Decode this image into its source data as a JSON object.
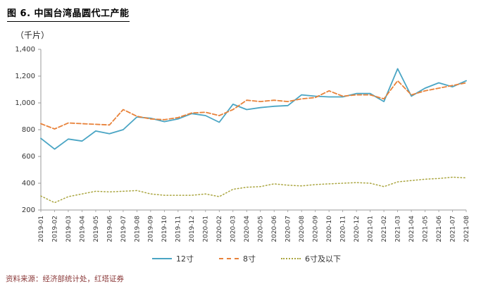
{
  "header": {
    "figure_title": "图 6. 中国台湾晶圆代工产能"
  },
  "unit_label": "（千片）",
  "footer": {
    "source": "资料来源：经济部统计处，红塔证券"
  },
  "colors": {
    "series_12": "#4aa5c4",
    "series_8": "#e8823a",
    "series_6": "#aaa53f",
    "axis": "#999999",
    "tick_text": "#333333"
  },
  "chart_data": {
    "type": "line",
    "title": "图 6. 中国台湾晶圆代工产能",
    "ylabel": "（千片）",
    "ylim": [
      200,
      1400
    ],
    "grid": false,
    "legend_position": "bottom",
    "y_ticks": {
      "values": [
        200,
        400,
        600,
        800,
        1000,
        1200,
        1400
      ],
      "labels": [
        "200",
        "400",
        "600",
        "800",
        "1,000",
        "1,200",
        "1,400"
      ]
    },
    "categories": [
      "2019-01",
      "2019-02",
      "2019-03",
      "2019-04",
      "2019-05",
      "2019-06",
      "2019-07",
      "2019-08",
      "2019-09",
      "2019-10",
      "2019-11",
      "2019-12",
      "2020-01",
      "2020-02",
      "2020-03",
      "2020-04",
      "2020-05",
      "2020-06",
      "2020-07",
      "2020-08",
      "2020-09",
      "2020-10",
      "2020-11",
      "2020-12",
      "2021-01",
      "2021-02",
      "2021-03",
      "2021-04",
      "2021-05",
      "2021-06",
      "2021-07",
      "2021-08"
    ],
    "series": [
      {
        "name": "12寸",
        "color": "#4aa5c4",
        "line_style": "solid",
        "dash": "",
        "width": 1.8,
        "values": [
          735,
          655,
          730,
          715,
          790,
          770,
          800,
          895,
          885,
          860,
          880,
          920,
          905,
          855,
          990,
          950,
          965,
          975,
          980,
          1060,
          1050,
          1045,
          1045,
          1070,
          1070,
          1010,
          1255,
          1050,
          1110,
          1150,
          1120,
          1165
        ]
      },
      {
        "name": "8寸",
        "color": "#e8823a",
        "line_style": "dashed",
        "dash": "6 3",
        "width": 1.8,
        "values": [
          845,
          805,
          850,
          845,
          840,
          835,
          950,
          900,
          880,
          875,
          890,
          925,
          930,
          905,
          950,
          1020,
          1010,
          1020,
          1010,
          1030,
          1040,
          1090,
          1050,
          1060,
          1060,
          1030,
          1165,
          1060,
          1090,
          1110,
          1130,
          1150
        ]
      },
      {
        "name": "6寸及以下",
        "color": "#aaa53f",
        "line_style": "dotted",
        "dash": "1.5 3",
        "width": 1.5,
        "values": [
          305,
          255,
          300,
          320,
          340,
          335,
          340,
          345,
          320,
          310,
          310,
          310,
          320,
          300,
          355,
          370,
          375,
          395,
          385,
          380,
          390,
          395,
          400,
          405,
          400,
          375,
          410,
          420,
          430,
          435,
          445,
          440
        ]
      }
    ]
  }
}
